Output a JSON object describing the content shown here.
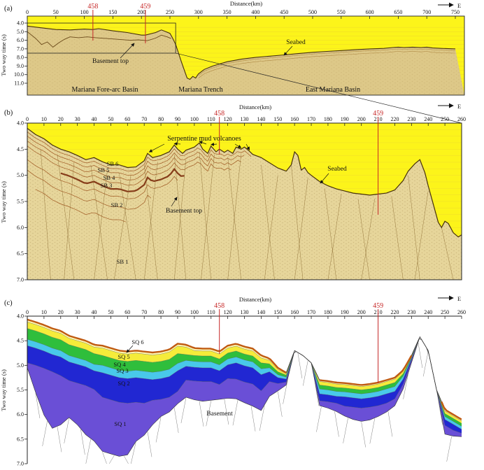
{
  "figure": {
    "panel_a": {
      "tag": "(a)",
      "axis_title": "Distance(km)",
      "direction": "E",
      "y_label": "Two way time (s)",
      "label_basement_top": "Basement top",
      "label_seabed": "Seabed",
      "label_forearc": "Mariana Fore-arc Basin",
      "label_trench": "Mariana Trench",
      "label_east_basin": "East Mariana Basin"
    },
    "panel_b": {
      "tag": "(b)",
      "axis_title": "Distance(km)",
      "direction": "E",
      "y_label": "Two way time (s)",
      "label_serpentine": "Serpentine mud volcanoes",
      "label_seabed": "Seabed",
      "label_basement_top": "Basement top",
      "sb_labels": [
        "SB 1",
        "SB 2",
        "SB 3",
        "SB 4",
        "SB 5",
        "SB 6"
      ]
    },
    "panel_c": {
      "tag": "(c)",
      "axis_title": "Distance(km)",
      "direction": "E",
      "y_label": "Two way time (s)",
      "label_basement": "Basement",
      "sq_labels": [
        "SQ 1",
        "SQ 2",
        "SQ 3",
        "SQ 4",
        "SQ 5",
        "SQ 6"
      ]
    }
  },
  "colors": {
    "panel_yellow": "#fcf41a",
    "grid": "#e3c23c",
    "tan_a": "#ddc888",
    "tan_b": "#e6d59a",
    "seabed_line": "#46300a",
    "strata": "#9a4f18",
    "strata_band": "#7c2c0c",
    "basement_line_a": "#6b4a1a",
    "marker_red": "#c62828",
    "box": "#222222",
    "fault_b": "#8a6a30",
    "fault_c": "#808080",
    "seabed_c": "#c05a12",
    "boundary_c": "#555555",
    "sq6": "#fdf6b0",
    "sq5": "#f5ec3a",
    "sq4": "#2fbe3c",
    "sq3": "#49c8ea",
    "sq2": "#2127d2",
    "sq1": "#6a4fd6"
  },
  "chart_data": [
    {
      "panel": "a",
      "type": "area",
      "title": "Distance(km)",
      "y_label": "Two way time (s)",
      "xlim": [
        0,
        750
      ],
      "ylim": [
        4,
        11
      ],
      "x_ticks": {
        "min": 0,
        "max": 750,
        "step": 50
      },
      "y_ticks": {
        "min": 4,
        "max": 11,
        "step": 1
      },
      "markers": [
        {
          "label": "458",
          "km": 115
        },
        {
          "label": "459",
          "km": 207
        }
      ],
      "zoom_box": {
        "km0": 0,
        "km1": 260,
        "t0": 4.0,
        "t1": 7.5
      },
      "seabed": {
        "x": [
          0,
          25,
          50,
          75,
          100,
          115,
          125,
          150,
          175,
          200,
          207,
          225,
          235,
          250,
          255,
          260,
          270,
          280,
          285,
          290,
          295,
          300,
          310,
          325,
          350,
          375,
          400,
          425,
          450,
          475,
          500,
          525,
          550,
          575,
          600,
          625,
          640,
          650,
          660,
          675,
          690,
          700,
          710,
          725,
          750
        ],
        "t": [
          4.35,
          4.55,
          4.75,
          4.8,
          4.7,
          4.75,
          4.65,
          4.9,
          5.1,
          5.4,
          5.4,
          5.1,
          4.8,
          5.2,
          5.8,
          6.5,
          8.5,
          10.4,
          10.55,
          10.2,
          10.4,
          9.9,
          9.4,
          9.0,
          8.5,
          8.2,
          8.0,
          7.85,
          7.7,
          7.55,
          7.4,
          7.3,
          7.2,
          7.1,
          7.0,
          6.95,
          6.85,
          6.8,
          6.85,
          6.8,
          6.85,
          6.8,
          6.9,
          6.95,
          7.0
        ]
      },
      "basement": {
        "x": [
          0,
          15,
          25,
          35,
          45,
          55,
          65,
          75,
          90,
          105,
          120,
          140,
          160,
          180,
          195,
          210,
          225,
          235,
          245,
          252
        ],
        "t": [
          5.0,
          5.8,
          6.5,
          6.2,
          6.8,
          6.3,
          5.9,
          5.6,
          5.7,
          5.6,
          5.7,
          5.8,
          5.9,
          6.0,
          5.95,
          6.05,
          5.75,
          5.4,
          5.6,
          5.8
        ]
      }
    },
    {
      "panel": "b",
      "type": "area",
      "title": "Distance(km)",
      "y_label": "Two way time (s)",
      "xlim": [
        0,
        260
      ],
      "ylim": [
        4,
        7
      ],
      "x_ticks": {
        "min": 0,
        "max": 260,
        "step": 10
      },
      "y_ticks": {
        "min": 4,
        "max": 7,
        "step": 0.5
      },
      "markers": [
        {
          "label": "458",
          "km": 115
        },
        {
          "label": "459",
          "km": 210
        }
      ],
      "seabed": {
        "x": [
          0,
          5,
          10,
          15,
          20,
          25,
          30,
          35,
          40,
          45,
          50,
          55,
          60,
          65,
          70,
          72,
          75,
          80,
          85,
          88,
          90,
          93,
          95,
          100,
          103,
          105,
          108,
          110,
          113,
          115,
          118,
          120,
          123,
          125,
          128,
          130,
          133,
          135,
          140,
          145,
          150,
          155,
          158,
          160,
          162,
          164,
          166,
          168,
          170,
          175,
          180,
          185,
          190,
          195,
          200,
          205,
          210,
          215,
          220,
          225,
          228,
          232,
          235,
          238,
          240,
          243,
          246,
          248,
          250,
          252,
          255,
          258,
          260
        ],
        "t": [
          4.1,
          4.22,
          4.3,
          4.42,
          4.5,
          4.55,
          4.62,
          4.7,
          4.66,
          4.74,
          4.8,
          4.8,
          4.85,
          4.84,
          4.72,
          4.58,
          4.66,
          4.62,
          4.55,
          4.42,
          4.5,
          4.58,
          4.52,
          4.46,
          4.38,
          4.5,
          4.58,
          4.44,
          4.55,
          4.5,
          4.56,
          4.52,
          4.58,
          4.46,
          4.5,
          4.46,
          4.54,
          4.6,
          4.66,
          4.76,
          4.86,
          4.92,
          4.8,
          4.55,
          4.62,
          4.9,
          4.85,
          4.95,
          5.0,
          5.12,
          5.2,
          5.26,
          5.3,
          5.34,
          5.36,
          5.38,
          5.36,
          5.34,
          5.28,
          5.1,
          4.92,
          4.78,
          4.7,
          4.95,
          5.2,
          5.55,
          5.9,
          6.0,
          5.88,
          5.92,
          6.1,
          6.18,
          6.14
        ]
      },
      "strata": [
        {
          "off": 0.07,
          "x0": 0,
          "x1": 135
        },
        {
          "off": 0.15,
          "x0": 0,
          "x1": 130
        },
        {
          "off": 0.24,
          "x0": 0,
          "x1": 128
        },
        {
          "off": 0.34,
          "x0": 0,
          "x1": 122
        },
        {
          "off": 0.46,
          "x0": 20,
          "x1": 95,
          "thick": true
        },
        {
          "off": 0.6,
          "x0": 0,
          "x1": 90
        },
        {
          "off": 0.8,
          "x0": 0,
          "x1": 75
        },
        {
          "off": 1.05,
          "x0": 5,
          "x1": 60
        }
      ],
      "faults": [
        [
          8,
          4.5,
          14
        ],
        [
          18,
          4.6,
          28
        ],
        [
          28,
          4.75,
          22
        ],
        [
          38,
          4.8,
          48
        ],
        [
          48,
          4.9,
          40
        ],
        [
          55,
          4.95,
          65
        ],
        [
          62,
          5.0,
          52
        ],
        [
          70,
          4.8,
          78
        ],
        [
          78,
          4.75,
          70
        ],
        [
          88,
          4.6,
          95
        ],
        [
          95,
          4.7,
          88
        ],
        [
          103,
          4.55,
          110
        ],
        [
          112,
          4.6,
          104
        ],
        [
          120,
          4.65,
          128
        ],
        [
          128,
          4.6,
          120
        ],
        [
          140,
          4.8,
          148
        ],
        [
          150,
          5.0,
          142
        ],
        [
          158,
          4.8,
          165
        ],
        [
          168,
          5.05,
          160
        ],
        [
          178,
          5.25,
          185
        ],
        [
          188,
          5.35,
          180
        ],
        [
          198,
          5.45,
          205
        ],
        [
          208,
          5.45,
          200
        ],
        [
          218,
          5.4,
          225
        ],
        [
          228,
          5.0,
          235
        ],
        [
          240,
          5.3,
          232
        ],
        [
          248,
          6.0,
          255
        ]
      ],
      "volcano_tips": [
        [
          73,
          4.58
        ],
        [
          88,
          4.42
        ],
        [
          103,
          4.38
        ],
        [
          110,
          4.44
        ],
        [
          128,
          4.5
        ],
        [
          133,
          4.54
        ]
      ]
    },
    {
      "panel": "c",
      "type": "area",
      "title": "Distance(km)",
      "y_label": "Two way time (s)",
      "xlim": [
        0,
        260
      ],
      "ylim": [
        4,
        7
      ],
      "x_ticks": {
        "min": 0,
        "max": 260,
        "step": 10
      },
      "y_ticks": {
        "min": 4,
        "max": 7,
        "step": 0.5
      },
      "markers": [
        {
          "label": "458",
          "km": 115
        },
        {
          "label": "459",
          "km": 210
        }
      ],
      "boundaries": {
        "x": [
          0,
          5,
          10,
          15,
          20,
          25,
          30,
          35,
          40,
          45,
          50,
          55,
          60,
          65,
          70,
          75,
          80,
          85,
          90,
          95,
          100,
          105,
          110,
          115,
          120,
          125,
          130,
          135,
          140,
          145,
          150,
          155,
          160,
          165,
          170,
          175,
          180,
          185,
          190,
          195,
          200,
          205,
          210,
          215,
          220,
          225,
          230,
          235,
          240,
          245,
          250,
          255,
          260
        ],
        "seabed": [
          4.07,
          4.12,
          4.18,
          4.25,
          4.3,
          4.4,
          4.45,
          4.5,
          4.58,
          4.6,
          4.65,
          4.7,
          4.72,
          4.7,
          4.72,
          4.74,
          4.72,
          4.68,
          4.56,
          4.58,
          4.65,
          4.66,
          4.66,
          4.72,
          4.6,
          4.56,
          4.62,
          4.66,
          4.8,
          4.86,
          5.05,
          5.15,
          4.7,
          4.8,
          4.95,
          5.3,
          5.32,
          5.35,
          5.36,
          5.38,
          5.4,
          5.38,
          5.35,
          5.3,
          5.25,
          5.1,
          4.8,
          4.42,
          4.7,
          5.5,
          5.9,
          6.0,
          6.1
        ],
        "b6": [
          4.12,
          4.17,
          4.23,
          4.3,
          4.35,
          4.45,
          4.5,
          4.55,
          4.63,
          4.65,
          4.7,
          4.75,
          4.77,
          4.75,
          4.77,
          4.79,
          4.77,
          4.73,
          4.61,
          4.63,
          4.7,
          4.71,
          4.71,
          4.77,
          4.65,
          4.61,
          4.67,
          4.71,
          4.85,
          4.9,
          5.08,
          5.17,
          4.7,
          4.8,
          4.95,
          5.33,
          5.35,
          5.38,
          5.39,
          5.41,
          5.43,
          5.41,
          5.38,
          5.33,
          5.28,
          5.12,
          4.81,
          4.42,
          4.7,
          5.5,
          5.93,
          6.03,
          6.13
        ],
        "b5": [
          4.25,
          4.3,
          4.36,
          4.43,
          4.48,
          4.58,
          4.63,
          4.68,
          4.76,
          4.8,
          4.85,
          4.9,
          4.92,
          4.9,
          4.92,
          4.94,
          4.92,
          4.88,
          4.76,
          4.78,
          4.8,
          4.81,
          4.81,
          4.87,
          4.75,
          4.71,
          4.77,
          4.81,
          4.95,
          4.97,
          5.13,
          5.2,
          4.7,
          4.8,
          4.95,
          5.4,
          5.42,
          5.45,
          5.46,
          5.48,
          5.5,
          5.48,
          5.45,
          5.4,
          5.35,
          5.17,
          4.83,
          4.42,
          4.7,
          5.5,
          5.98,
          6.08,
          6.18
        ],
        "b4": [
          4.47,
          4.52,
          4.58,
          4.65,
          4.7,
          4.8,
          4.85,
          4.9,
          4.98,
          5.0,
          5.05,
          5.1,
          5.12,
          5.1,
          5.12,
          5.14,
          5.12,
          5.08,
          4.96,
          4.9,
          4.92,
          4.93,
          4.93,
          4.99,
          4.87,
          4.83,
          4.89,
          4.93,
          5.07,
          5.05,
          5.19,
          5.24,
          4.7,
          4.8,
          4.95,
          5.48,
          5.5,
          5.53,
          5.54,
          5.56,
          5.58,
          5.56,
          5.53,
          5.48,
          5.43,
          5.22,
          4.85,
          4.42,
          4.7,
          5.5,
          6.04,
          6.14,
          6.24
        ],
        "b3": [
          4.6,
          4.65,
          4.71,
          4.78,
          4.83,
          4.93,
          4.98,
          5.03,
          5.11,
          5.15,
          5.2,
          5.25,
          5.27,
          5.25,
          5.27,
          5.29,
          5.27,
          5.23,
          5.11,
          5.02,
          5.04,
          5.05,
          5.05,
          5.11,
          4.99,
          4.95,
          5.01,
          5.05,
          5.19,
          5.13,
          5.25,
          5.28,
          4.7,
          4.8,
          4.95,
          5.58,
          5.6,
          5.63,
          5.64,
          5.66,
          5.68,
          5.66,
          5.63,
          5.58,
          5.53,
          5.28,
          4.87,
          4.42,
          4.7,
          5.5,
          6.1,
          6.2,
          6.3
        ],
        "b2": [
          4.95,
          5.0,
          5.06,
          5.13,
          5.21,
          5.31,
          5.36,
          5.41,
          5.49,
          5.65,
          5.7,
          5.75,
          5.77,
          5.75,
          5.77,
          5.71,
          5.69,
          5.65,
          5.53,
          5.3,
          5.32,
          5.33,
          5.33,
          5.39,
          5.27,
          5.28,
          5.34,
          5.38,
          5.52,
          5.33,
          5.37,
          5.34,
          4.7,
          4.8,
          4.95,
          5.72,
          5.74,
          5.77,
          5.83,
          5.85,
          5.87,
          5.85,
          5.82,
          5.77,
          5.68,
          5.38,
          4.91,
          4.42,
          4.7,
          5.5,
          6.22,
          6.32,
          6.38
        ],
        "b1": [
          5.05,
          5.55,
          6.01,
          6.28,
          6.21,
          6.06,
          6.21,
          6.41,
          6.54,
          6.75,
          6.8,
          6.85,
          6.82,
          6.55,
          6.42,
          6.21,
          6.04,
          5.95,
          5.78,
          5.65,
          5.7,
          5.73,
          5.71,
          5.69,
          5.67,
          5.68,
          5.76,
          5.83,
          5.92,
          5.63,
          5.52,
          5.4,
          4.7,
          4.8,
          4.95,
          5.82,
          5.87,
          5.94,
          6.03,
          6.1,
          6.14,
          6.11,
          6.04,
          5.95,
          5.82,
          5.48,
          4.95,
          4.42,
          4.7,
          5.5,
          6.4,
          6.44,
          6.45
        ]
      },
      "layers": [
        {
          "name": "SQ 1",
          "top": "b2",
          "base": "b1",
          "color": "#6a4fd6"
        },
        {
          "name": "SQ 2",
          "top": "b3",
          "base": "b2",
          "color": "#2127d2"
        },
        {
          "name": "SQ 3",
          "top": "b4",
          "base": "b3",
          "color": "#49c8ea"
        },
        {
          "name": "SQ 4",
          "top": "b5",
          "base": "b4",
          "color": "#2fbe3c"
        },
        {
          "name": "SQ 5",
          "top": "b6",
          "base": "b5",
          "color": "#f5ec3a"
        },
        {
          "name": "SQ 6",
          "top": "seabed",
          "base": "b6",
          "color": "#fdf6b0"
        }
      ],
      "seabed_brown_segments": [
        [
          0,
          155
        ],
        [
          175,
          230
        ],
        [
          248,
          260
        ]
      ],
      "outcrop_segments": [
        [
          155,
          175
        ],
        [
          230,
          250
        ]
      ],
      "faults": [
        5,
        12,
        18,
        25,
        32,
        38,
        45,
        52,
        58,
        65,
        72,
        80,
        88,
        95,
        103,
        110,
        118,
        126,
        134,
        142,
        150,
        156,
        162,
        168,
        172,
        176,
        184,
        192,
        200,
        208,
        216,
        228,
        234,
        240,
        246,
        254
      ]
    }
  ]
}
